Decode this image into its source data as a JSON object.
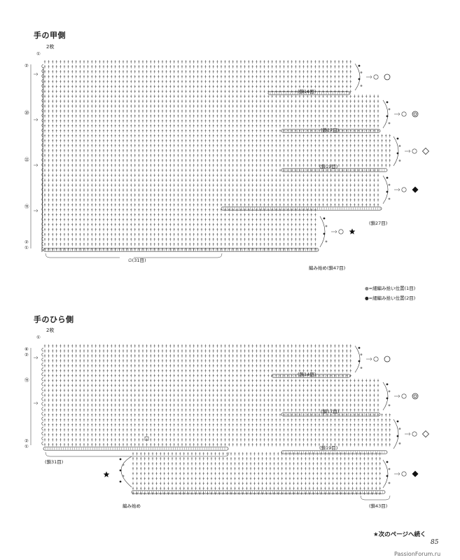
{
  "diagram1": {
    "title": "手の甲側",
    "count": "2枚",
    "row_markers": [
      "①",
      "②",
      "⑳",
      "㉒",
      "⑮",
      "②",
      "①"
    ],
    "chain_labels": [
      "(鎖14目)",
      "(鎖17目)",
      "(鎖19目)",
      "(鎖27目)"
    ],
    "base_label": "(31目)",
    "start_label": "編み始め(鎖47目)",
    "finger_symbols": [
      "circle",
      "double-circle",
      "diamond",
      "filled-diamond",
      "star"
    ]
  },
  "legend": [
    {
      "text": "=細編み拾い位置(1目)",
      "color": "#888888"
    },
    {
      "text": "=細編み拾い位置(2目)",
      "color": "#222222"
    }
  ],
  "diagram2": {
    "title": "手のひら側",
    "count": "2枚",
    "row_markers": [
      "①",
      "⑥",
      "②",
      "⑮",
      "②",
      "①"
    ],
    "chain_labels": [
      "(鎖14目)",
      "(鎖17目)",
      "(鎖19目)",
      "(鎖31目)",
      "(鎖43目)"
    ],
    "start_label": "編み始め",
    "finger_symbols": [
      "circle",
      "double-circle",
      "diamond",
      "filled-diamond",
      "star"
    ]
  },
  "footer": {
    "continue": "★次のページへ続く",
    "page_number": "85",
    "watermark": "PassionForum.ru"
  }
}
